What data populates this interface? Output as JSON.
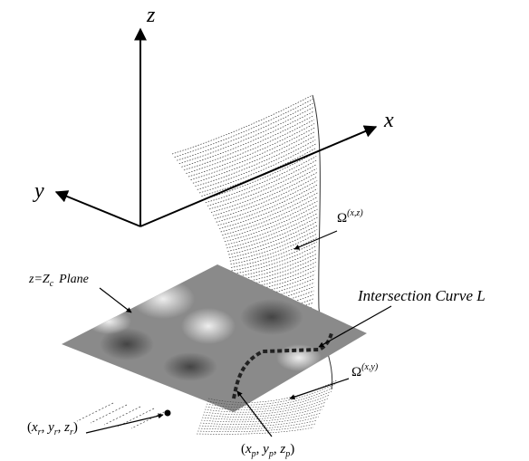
{
  "axes": {
    "z": "z",
    "x": "x",
    "y": "y"
  },
  "labels": {
    "omega_xz": {
      "symbol": "Ω",
      "superscript": "(x,z)"
    },
    "plane": {
      "lhs": "z",
      "eq": "=",
      "rhs": "Z",
      "rhs_subscript": "c",
      "word": "Plane"
    },
    "intersection": "Intersection Curve L",
    "omega_xy": {
      "symbol": "Ω",
      "superscript": "(x,y)"
    },
    "receiver": {
      "open": "(",
      "sep": ", ",
      "close": ")",
      "terms": [
        {
          "var": "x",
          "sub": "r"
        },
        {
          "var": "y",
          "sub": "r"
        },
        {
          "var": "z",
          "sub": "r"
        }
      ]
    },
    "point": {
      "open": "(",
      "sep": ", ",
      "close": ")",
      "terms": [
        {
          "var": "x",
          "sub": "p"
        },
        {
          "var": "y",
          "sub": "p"
        },
        {
          "var": "z",
          "sub": "p"
        }
      ]
    }
  }
}
